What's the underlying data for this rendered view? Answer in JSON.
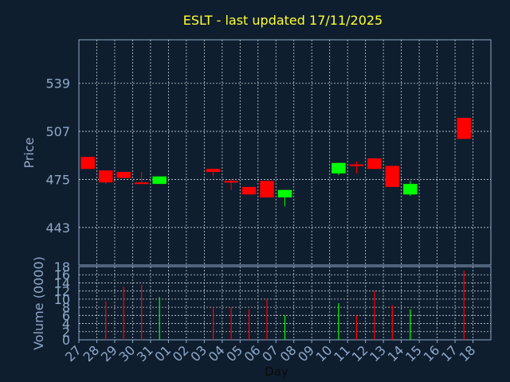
{
  "chart_data": {
    "type": "candlestick",
    "title": "ESLT - last updated 17/11/2025",
    "price_panel": {
      "ylabel": "Price",
      "yticks": [
        443,
        475,
        507,
        539
      ],
      "ylim": [
        418,
        568
      ]
    },
    "volume_panel": {
      "ylabel": "Volume (0000)",
      "yticks": [
        0,
        2,
        4,
        6,
        8,
        10,
        12,
        14,
        16,
        18
      ],
      "ylim": [
        0,
        18
      ]
    },
    "xlabel": "Day",
    "x_ticks": [
      "27",
      "28",
      "29",
      "30",
      "31",
      "01",
      "02",
      "03",
      "04",
      "05",
      "06",
      "07",
      "08",
      "09",
      "10",
      "11",
      "12",
      "13",
      "14",
      "15",
      "16",
      "17",
      "18"
    ],
    "colors": {
      "background": "#0f1e2e",
      "panel": "#0f1e2e",
      "grid": "#c8d0d8",
      "axis_text": "#8fa8c8",
      "title": "#ffff33",
      "up": "#00ff00",
      "down": "#ff0000"
    },
    "candles": [
      {
        "day": "27",
        "open": 490,
        "close": 482,
        "high": 490,
        "low": 482
      },
      {
        "day": "28",
        "open": 481,
        "close": 473,
        "high": 481,
        "low": 472
      },
      {
        "day": "29",
        "open": 480,
        "close": 476,
        "high": 480,
        "low": 476
      },
      {
        "day": "30",
        "open": 473,
        "close": 472,
        "high": 480,
        "low": 472
      },
      {
        "day": "31",
        "open": 472,
        "close": 477,
        "high": 477,
        "low": 472
      },
      {
        "day": "03",
        "open": 482,
        "close": 480,
        "high": 482,
        "low": 477
      },
      {
        "day": "04",
        "open": 474,
        "close": 473,
        "high": 475,
        "low": 468
      },
      {
        "day": "05",
        "open": 470,
        "close": 465,
        "high": 470,
        "low": 465
      },
      {
        "day": "06",
        "open": 474,
        "close": 463,
        "high": 474,
        "low": 463
      },
      {
        "day": "07",
        "open": 463,
        "close": 468,
        "high": 468,
        "low": 457
      },
      {
        "day": "10",
        "open": 479,
        "close": 486,
        "high": 486,
        "low": 478
      },
      {
        "day": "11",
        "open": 485,
        "close": 484,
        "high": 487,
        "low": 479
      },
      {
        "day": "12",
        "open": 489,
        "close": 482,
        "high": 489,
        "low": 482
      },
      {
        "day": "13",
        "open": 484,
        "close": 470,
        "high": 484,
        "low": 470
      },
      {
        "day": "14",
        "open": 465,
        "close": 472,
        "high": 474,
        "low": 464
      },
      {
        "day": "17",
        "open": 516,
        "close": 502,
        "high": 516,
        "low": 502
      }
    ],
    "volume": [
      {
        "day": "28",
        "value": 9.5,
        "dir": "down"
      },
      {
        "day": "29",
        "value": 13.0,
        "dir": "down"
      },
      {
        "day": "30",
        "value": 13.5,
        "dir": "down"
      },
      {
        "day": "31",
        "value": 10.5,
        "dir": "up"
      },
      {
        "day": "03",
        "value": 8.0,
        "dir": "down"
      },
      {
        "day": "04",
        "value": 8.0,
        "dir": "down"
      },
      {
        "day": "05",
        "value": 7.5,
        "dir": "down"
      },
      {
        "day": "06",
        "value": 10.0,
        "dir": "down"
      },
      {
        "day": "07",
        "value": 6.0,
        "dir": "up"
      },
      {
        "day": "10",
        "value": 9.0,
        "dir": "up"
      },
      {
        "day": "11",
        "value": 6.0,
        "dir": "down"
      },
      {
        "day": "12",
        "value": 12.0,
        "dir": "down"
      },
      {
        "day": "13",
        "value": 8.5,
        "dir": "down"
      },
      {
        "day": "14",
        "value": 7.5,
        "dir": "up"
      },
      {
        "day": "17",
        "value": 17.0,
        "dir": "down"
      }
    ]
  }
}
